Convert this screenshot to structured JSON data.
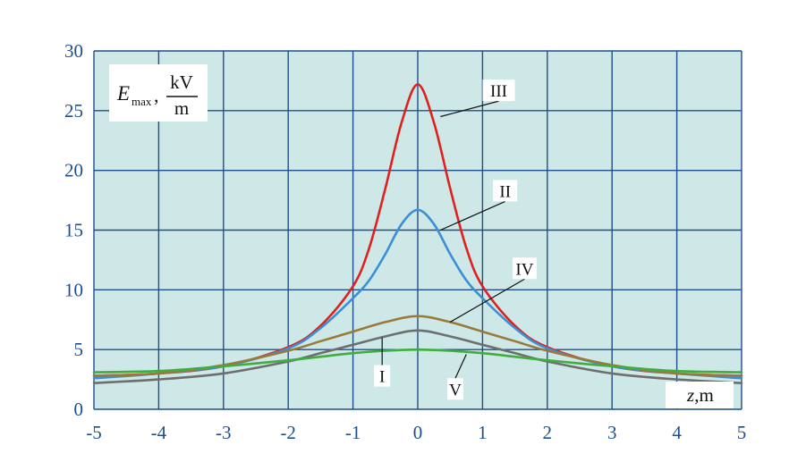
{
  "chart_data": {
    "type": "line",
    "title": "",
    "xlabel": {
      "var": "z",
      "unit": ",m"
    },
    "ylabel": {
      "var": "E",
      "sub": "max",
      "comma": ",",
      "unit_num": "kV",
      "unit_den": "m"
    },
    "xlim": [
      -5,
      5
    ],
    "ylim": [
      0,
      30
    ],
    "x_ticks": [
      -5,
      -4,
      -3,
      -2,
      -1,
      0,
      1,
      2,
      3,
      4,
      5
    ],
    "y_ticks": [
      0,
      5,
      10,
      15,
      20,
      25,
      30
    ],
    "grid": true,
    "background": "#cde8e6",
    "grid_color": "#1f4e8c",
    "tick_color": "#1f4e8c",
    "series": [
      {
        "name": "III",
        "color": "#e02020",
        "x": [
          -5,
          -4,
          -3,
          -2,
          -1.5,
          -1,
          -0.75,
          -0.5,
          -0.25,
          0,
          0.25,
          0.5,
          0.75,
          1,
          1.5,
          2,
          3,
          4,
          5
        ],
        "y": [
          2.8,
          3.0,
          3.6,
          5.2,
          7.0,
          10.3,
          13.5,
          18.5,
          24.0,
          27.2,
          24.0,
          18.5,
          13.5,
          10.3,
          7.0,
          5.2,
          3.6,
          3.0,
          2.8
        ]
      },
      {
        "name": "II",
        "color": "#3b8fd4",
        "x": [
          -5,
          -4,
          -3,
          -2,
          -1.5,
          -1,
          -0.75,
          -0.5,
          -0.25,
          0,
          0.25,
          0.5,
          0.75,
          1,
          1.5,
          2,
          3,
          4,
          5
        ],
        "y": [
          2.6,
          3.0,
          3.6,
          5.1,
          6.8,
          9.3,
          10.8,
          13.0,
          15.5,
          16.7,
          15.5,
          13.0,
          10.8,
          9.3,
          6.8,
          5.1,
          3.6,
          3.0,
          2.6
        ]
      },
      {
        "name": "IV",
        "color": "#9a7a3a",
        "x": [
          -5,
          -4,
          -3,
          -2,
          -1.5,
          -1,
          -0.5,
          0,
          0.5,
          1,
          1.5,
          2,
          3,
          4,
          5
        ],
        "y": [
          2.8,
          3.0,
          3.7,
          4.9,
          5.7,
          6.5,
          7.3,
          7.8,
          7.3,
          6.5,
          5.7,
          4.9,
          3.7,
          3.0,
          2.8
        ]
      },
      {
        "name": "I",
        "color": "#6e6e6e",
        "x": [
          -5,
          -4,
          -3,
          -2,
          -1.5,
          -1,
          -0.5,
          0,
          0.5,
          1,
          1.5,
          2,
          3,
          4,
          5
        ],
        "y": [
          2.2,
          2.5,
          3.0,
          4.0,
          4.7,
          5.4,
          6.1,
          6.6,
          6.1,
          5.4,
          4.7,
          4.0,
          3.0,
          2.5,
          2.2
        ]
      },
      {
        "name": "V",
        "color": "#3fae3f",
        "x": [
          -5,
          -4,
          -3,
          -2,
          -1.5,
          -1,
          -0.5,
          0,
          0.5,
          1,
          1.5,
          2,
          3,
          4,
          5
        ],
        "y": [
          3.1,
          3.2,
          3.6,
          4.1,
          4.4,
          4.7,
          4.9,
          5.0,
          4.9,
          4.7,
          4.4,
          4.1,
          3.6,
          3.2,
          3.1
        ]
      }
    ],
    "annotations": [
      {
        "text": "III",
        "series": "III",
        "point": [
          0.35,
          24.5
        ],
        "label_at": [
          1.25,
          26.7
        ]
      },
      {
        "text": "II",
        "series": "II",
        "point": [
          0.35,
          15.0
        ],
        "label_at": [
          1.35,
          18.3
        ]
      },
      {
        "text": "IV",
        "series": "IV",
        "point": [
          0.5,
          7.3
        ],
        "label_at": [
          1.65,
          11.8
        ]
      },
      {
        "text": "I",
        "series": "I",
        "point": [
          -0.55,
          6.0
        ],
        "label_at": [
          -0.55,
          2.8
        ]
      },
      {
        "text": "V",
        "series": "V",
        "point": [
          0.75,
          4.6
        ],
        "label_at": [
          0.58,
          1.7
        ]
      }
    ]
  }
}
